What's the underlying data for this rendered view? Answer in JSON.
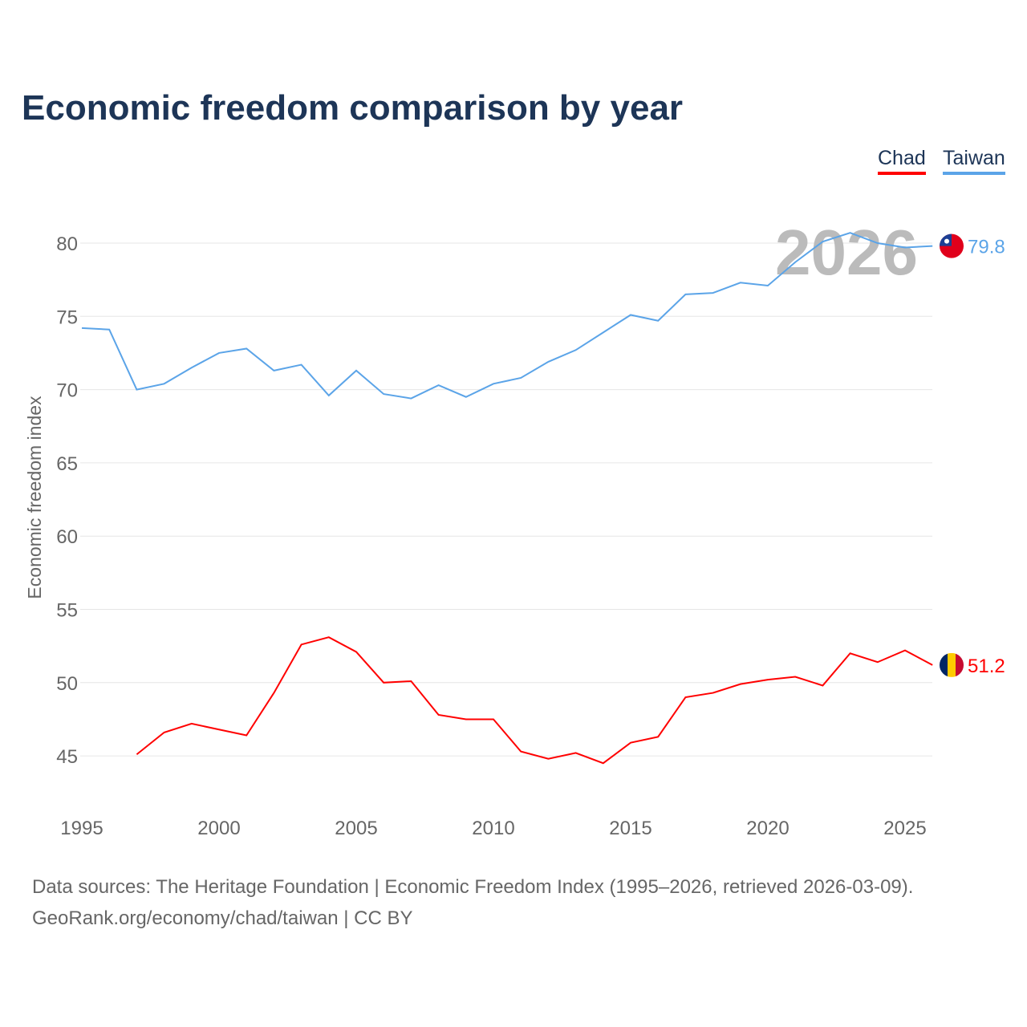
{
  "title": "Economic freedom comparison by year",
  "legend": [
    {
      "name": "Chad",
      "color": "#ff0000"
    },
    {
      "name": "Taiwan",
      "color": "#5ba4e8"
    }
  ],
  "source_line1": "Data sources: The Heritage Foundation | Economic Freedom Index (1995–2026, retrieved 2026-03-09).",
  "source_line2": "GeoRank.org/economy/chad/taiwan | CC BY",
  "chart_data": {
    "type": "line",
    "title": "Economic freedom comparison by year",
    "ylabel": "Economic freedom index",
    "xlim": [
      1995,
      2026
    ],
    "ylim": [
      42,
      82
    ],
    "xticks": [
      1995,
      2000,
      2005,
      2010,
      2015,
      2020,
      2025
    ],
    "yticks": [
      45,
      50,
      55,
      60,
      65,
      70,
      75,
      80
    ],
    "watermark_year": "2026",
    "series": [
      {
        "name": "Taiwan",
        "color": "#5ba4e8",
        "end_label": "79.8",
        "start_year": 1995,
        "values": [
          74.2,
          74.1,
          70.0,
          70.4,
          71.5,
          72.5,
          72.8,
          71.3,
          71.7,
          69.6,
          71.3,
          69.7,
          69.4,
          70.3,
          69.5,
          70.4,
          70.8,
          71.9,
          72.7,
          73.9,
          75.1,
          74.7,
          76.5,
          76.6,
          77.3,
          77.1,
          78.7,
          80.1,
          80.7,
          80.0,
          79.7,
          79.8
        ]
      },
      {
        "name": "Chad",
        "color": "#ff0000",
        "end_label": "51.2",
        "start_year": 1997,
        "values": [
          45.1,
          46.6,
          47.2,
          46.8,
          46.4,
          49.3,
          52.6,
          53.1,
          52.1,
          50.0,
          50.1,
          47.8,
          47.5,
          47.5,
          45.3,
          44.8,
          45.2,
          44.5,
          45.9,
          46.3,
          49.0,
          49.3,
          49.9,
          50.2,
          50.4,
          49.8,
          52.0,
          51.4,
          52.2,
          51.2
        ]
      }
    ]
  }
}
